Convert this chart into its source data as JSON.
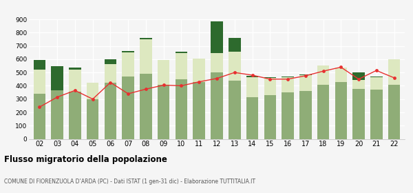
{
  "years": [
    "02",
    "03",
    "04",
    "05",
    "06",
    "07",
    "08",
    "09",
    "10",
    "11",
    "12",
    "13",
    "14",
    "15",
    "16",
    "17",
    "18",
    "19",
    "20",
    "21",
    "22"
  ],
  "altri_comuni": [
    340,
    365,
    355,
    300,
    425,
    470,
    490,
    405,
    450,
    430,
    500,
    440,
    315,
    330,
    350,
    360,
    410,
    430,
    375,
    370,
    410
  ],
  "light_top": [
    180,
    0,
    165,
    125,
    140,
    180,
    260,
    190,
    195,
    175,
    145,
    215,
    150,
    130,
    115,
    120,
    145,
    105,
    70,
    95,
    190
  ],
  "dark_top": [
    75,
    185,
    15,
    0,
    35,
    10,
    10,
    0,
    10,
    0,
    0,
    105,
    10,
    5,
    5,
    5,
    0,
    0,
    55,
    5,
    0
  ],
  "extra_dark": [
    0,
    0,
    0,
    0,
    0,
    0,
    0,
    0,
    0,
    0,
    240,
    0,
    0,
    0,
    0,
    0,
    0,
    0,
    0,
    0,
    0
  ],
  "cancellati": [
    240,
    315,
    365,
    300,
    425,
    340,
    375,
    405,
    400,
    430,
    455,
    500,
    480,
    450,
    450,
    475,
    510,
    540,
    450,
    515,
    460
  ],
  "color_altri_comuni": "#8fad77",
  "color_estero": "#dde8c0",
  "color_altri": "#2d6a2d",
  "color_cancellati": "#e83030",
  "background": "#f5f5f5",
  "title": "Flusso migratorio della popolazione",
  "subtitle": "COMUNE DI FIORENZUOLA D’ARDA (PC) - Dati ISTAT (1 gen-31 dic) - Elaborazione TUTTITALIA.IT",
  "ylim": [
    0,
    900
  ],
  "yticks": [
    0,
    100,
    200,
    300,
    400,
    500,
    600,
    700,
    800,
    900
  ]
}
